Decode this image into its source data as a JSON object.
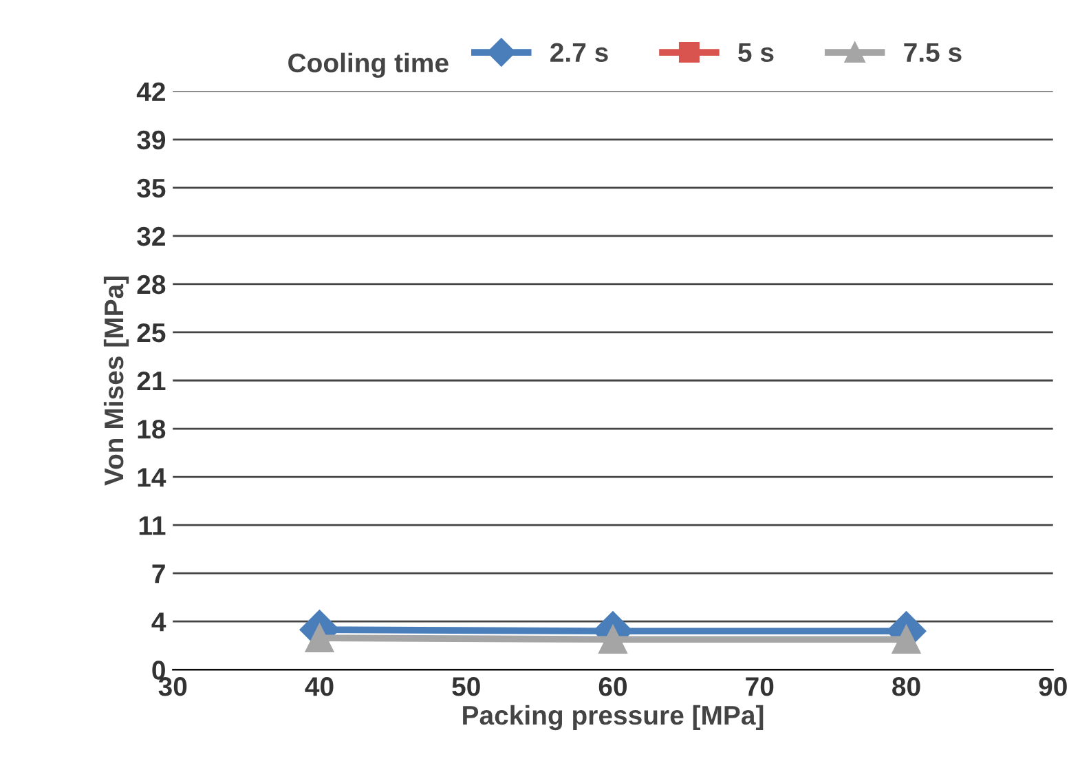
{
  "chart_data": {
    "type": "line",
    "xlabel": "Packing pressure [MPa]",
    "ylabel": "Von Mises [MPa]",
    "legend_title": "Cooling time",
    "legend": "top",
    "x": [
      40,
      60,
      80
    ],
    "series": [
      {
        "name": "2.7 s",
        "color": "#4a7ebb",
        "values": [
          2.9,
          2.8,
          2.8
        ],
        "marker": "diamond"
      },
      {
        "name": "5 s",
        "color": "#d9534f",
        "values": [
          null,
          null,
          null
        ],
        "marker": "square"
      },
      {
        "name": "7.5 s",
        "color": "#a5a5a5",
        "values": [
          2.3,
          2.2,
          2.2
        ],
        "marker": "triangle"
      }
    ],
    "xlim": [
      30,
      90
    ],
    "xticks": [
      30,
      40,
      50,
      60,
      70,
      80,
      90
    ],
    "ylim": [
      0,
      42
    ],
    "yticks": [
      0,
      {
        "value": 3.5,
        "label": "4"
      },
      7,
      {
        "value": 10.5,
        "label": "11"
      },
      14,
      {
        "value": 17.5,
        "label": "18"
      },
      21,
      {
        "value": 24.5,
        "label": "25"
      },
      28,
      {
        "value": 31.5,
        "label": "32"
      },
      35,
      {
        "value": 38.5,
        "label": "39"
      },
      42
    ],
    "grid": "y"
  }
}
